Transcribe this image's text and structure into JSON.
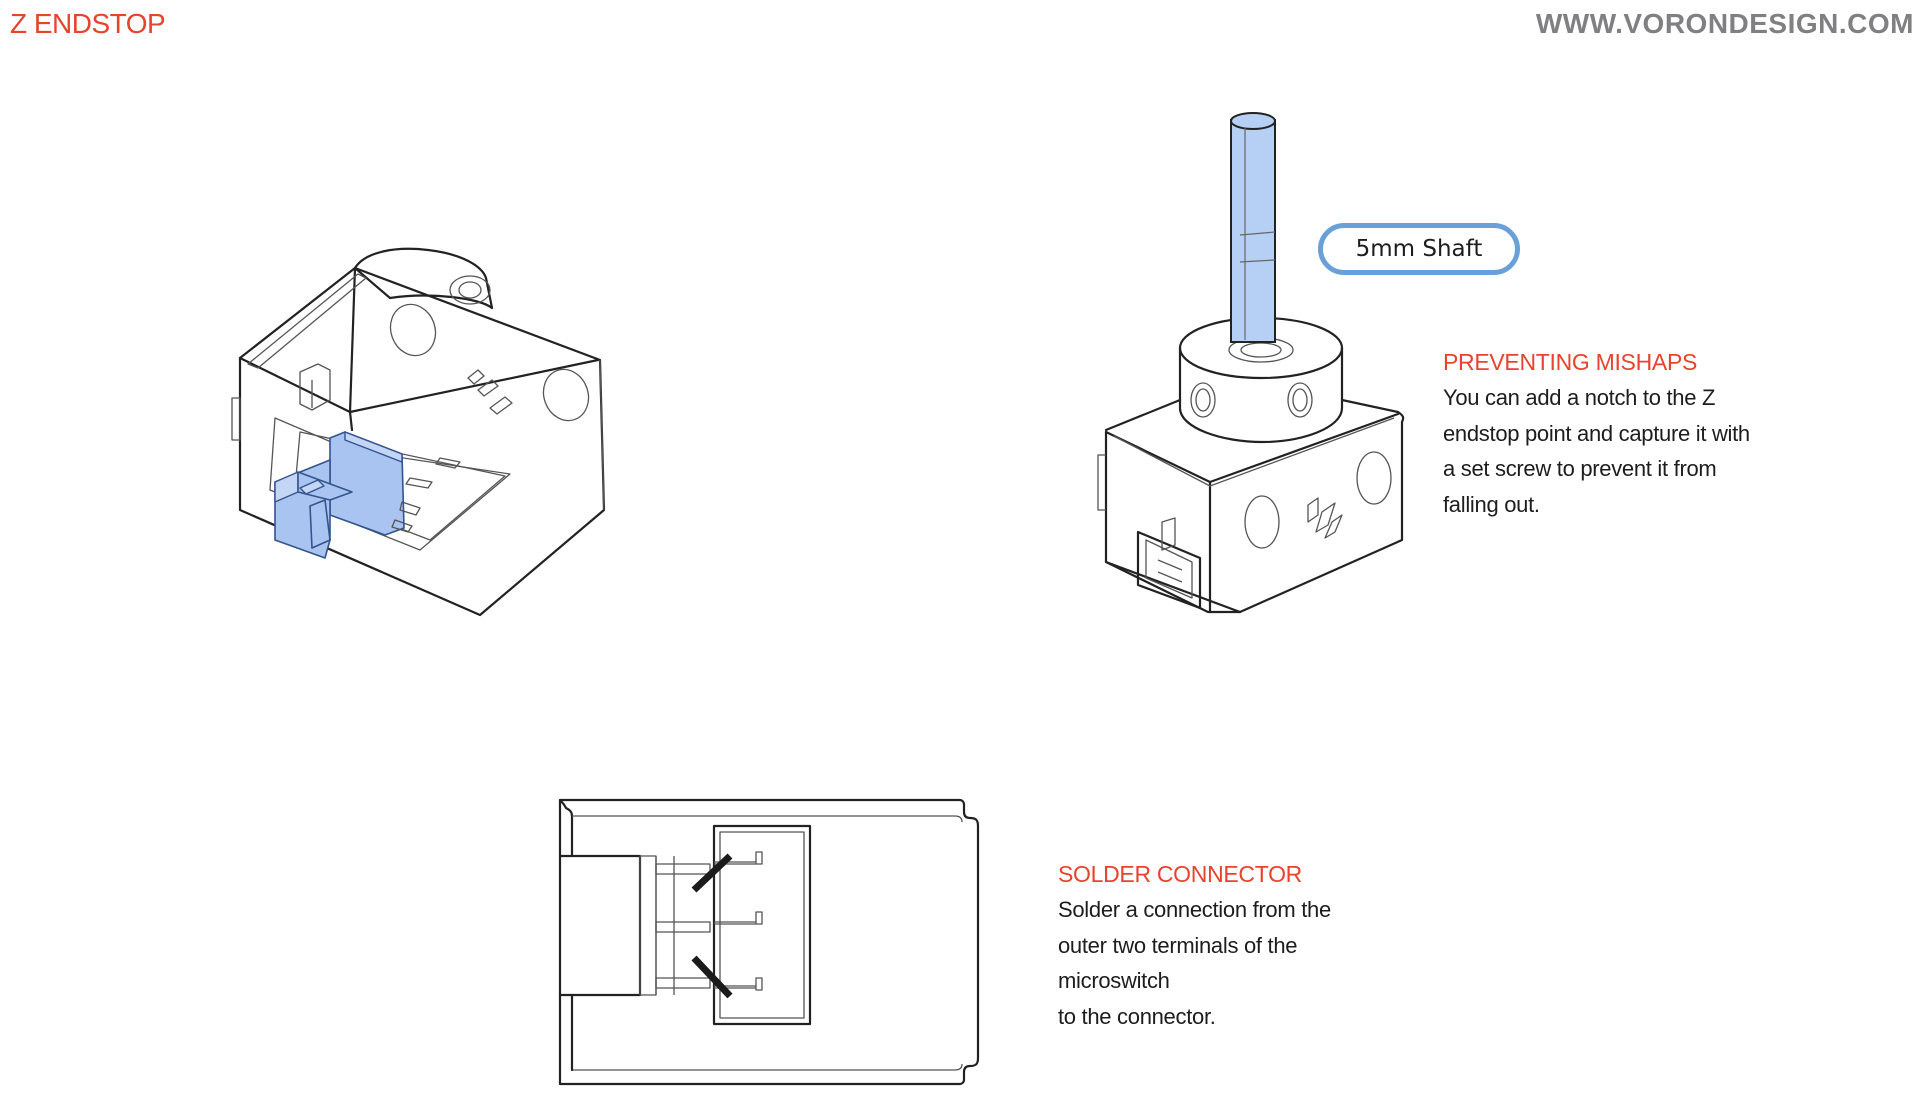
{
  "header": {
    "title": "Z ENDSTOP",
    "website": "WWW.VORONDESIGN.COM"
  },
  "callout": {
    "shaft_label": "5mm Shaft"
  },
  "notes": {
    "mishaps": {
      "title": "PREVENTING MISHAPS",
      "lines": [
        "You can add a notch to the Z",
        "endstop point and capture it with",
        "a set screw to prevent it from",
        "falling out."
      ]
    },
    "solder": {
      "title": "SOLDER CONNECTOR",
      "lines": [
        "Solder a connection from the",
        "outer two terminals of the",
        "microswitch",
        "to the connector."
      ]
    }
  },
  "colors": {
    "accent": "#e8432e",
    "website": "#808083",
    "highlight_blue": "#a9c4f0",
    "callout_border": "#6aa0d8",
    "wire": "#1b1b1b"
  }
}
